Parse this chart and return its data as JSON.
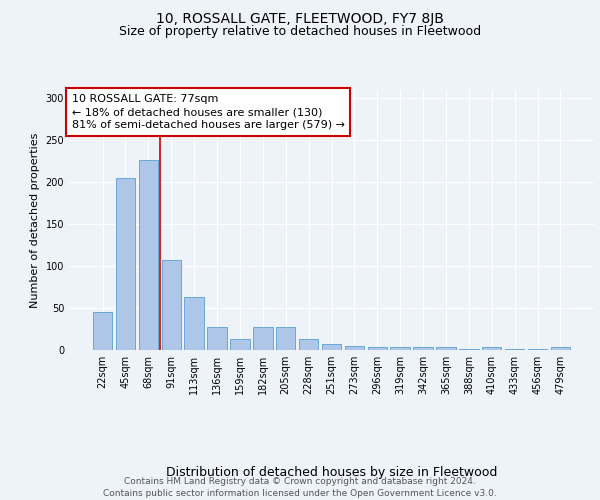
{
  "title": "10, ROSSALL GATE, FLEETWOOD, FY7 8JB",
  "subtitle": "Size of property relative to detached houses in Fleetwood",
  "xlabel": "Distribution of detached houses by size in Fleetwood",
  "ylabel": "Number of detached properties",
  "categories": [
    "22sqm",
    "45sqm",
    "68sqm",
    "91sqm",
    "113sqm",
    "136sqm",
    "159sqm",
    "182sqm",
    "205sqm",
    "228sqm",
    "251sqm",
    "273sqm",
    "296sqm",
    "319sqm",
    "342sqm",
    "365sqm",
    "388sqm",
    "410sqm",
    "433sqm",
    "456sqm",
    "479sqm"
  ],
  "values": [
    45,
    205,
    227,
    107,
    63,
    28,
    13,
    28,
    28,
    13,
    7,
    5,
    3,
    3,
    3,
    3,
    1,
    3,
    1,
    1,
    3
  ],
  "bar_color": "#aec6e8",
  "bar_edge_color": "#5a9fd4",
  "property_line_color": "#cc0000",
  "annotation_text": "10 ROSSALL GATE: 77sqm\n← 18% of detached houses are smaller (130)\n81% of semi-detached houses are larger (579) →",
  "annotation_box_color": "#ffffff",
  "annotation_box_edge_color": "#cc0000",
  "ylim": [
    0,
    310
  ],
  "background_color": "#eef2f9",
  "grid_color": "#ffffff",
  "footer_text": "Contains HM Land Registry data © Crown copyright and database right 2024.\nContains public sector information licensed under the Open Government Licence v3.0.",
  "title_fontsize": 10,
  "subtitle_fontsize": 9,
  "xlabel_fontsize": 9,
  "ylabel_fontsize": 8,
  "tick_fontsize": 7,
  "annotation_fontsize": 8,
  "footer_fontsize": 6.5
}
